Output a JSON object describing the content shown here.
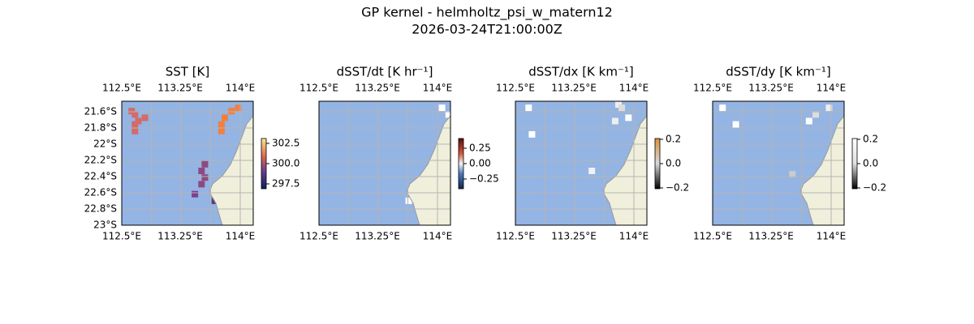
{
  "figure": {
    "title": "GP kernel - helmholtz_psi_w_matern12",
    "subtitle": "2026-03-24T21:00:00Z",
    "lat_ticks": [
      "21.6°S",
      "21.8°S",
      "22°S",
      "22.2°S",
      "22.4°S",
      "22.6°S",
      "22.8°S",
      "23°S"
    ],
    "panels": [
      {
        "title": "SST [K]",
        "lon_ticks": [
          "112.5°E",
          "113.25°E",
          "114°E"
        ],
        "colorbar_ticks": [
          "302.5",
          "300.0",
          "297.5"
        ]
      },
      {
        "title": "dSST/dt [K hr⁻¹]",
        "lon_ticks": [
          "112.5°E",
          "113.25°E",
          "114°E"
        ],
        "colorbar_ticks": [
          "0.25",
          "0.00",
          "−0.25"
        ]
      },
      {
        "title": "dSST/dx [K km⁻¹]",
        "lon_ticks": [
          "112.5°E",
          "113.25°E",
          "114°E"
        ],
        "colorbar_ticks": [
          "0.2",
          "0.0",
          "−0.2"
        ]
      },
      {
        "title": "dSST/dy [K km⁻¹]",
        "lon_ticks": [
          "112.5°E",
          "113.25°E",
          "114°E"
        ],
        "colorbar_ticks": [
          "0.2",
          "0.0",
          "−0.2"
        ]
      }
    ]
  }
}
